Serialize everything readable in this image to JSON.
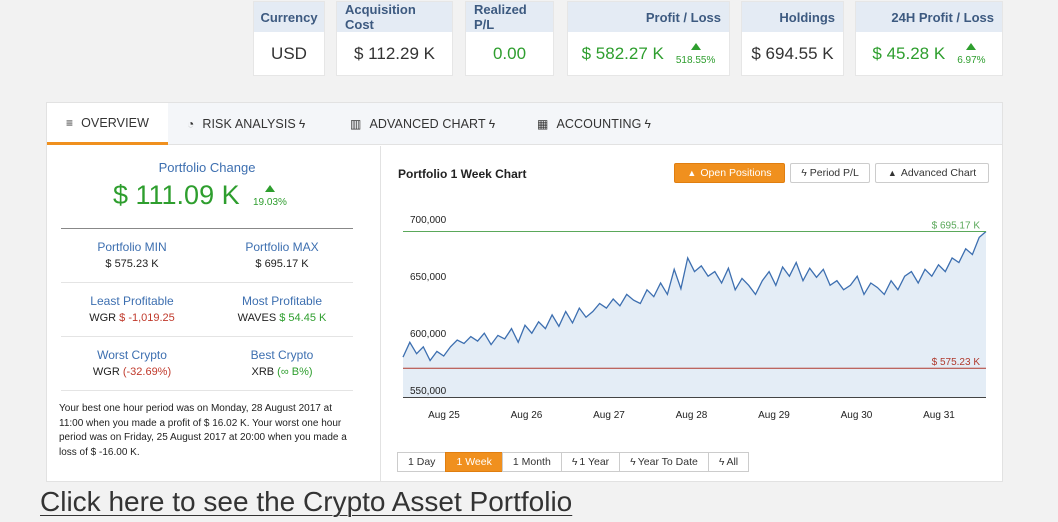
{
  "stats": [
    {
      "header": "Currency",
      "value": "USD",
      "green": false
    },
    {
      "header": "Acquisition Cost",
      "value": "$ 112.29 K",
      "green": false
    },
    {
      "header": "Realized P/L",
      "value": "0.00",
      "green": true
    },
    {
      "header": "Profit / Loss",
      "value": "$ 582.27 K",
      "pct": "518.55%",
      "green": true
    },
    {
      "header": "Holdings",
      "value": "$ 694.55 K",
      "green": false
    },
    {
      "header": "24H Profit / Loss",
      "value": "$ 45.28 K",
      "pct": "6.97%",
      "green": true
    }
  ],
  "tabs": [
    {
      "label": "OVERVIEW",
      "icon": "list-icon",
      "glyph": "≡",
      "active": true,
      "bolt": false
    },
    {
      "label": "RISK ANALYSIS",
      "icon": "pie-chart-icon",
      "glyph": "◔",
      "active": false,
      "bolt": true
    },
    {
      "label": "ADVANCED CHART",
      "icon": "bar-chart-icon",
      "glyph": "▥",
      "active": false,
      "bolt": true
    },
    {
      "label": "ACCOUNTING",
      "icon": "calculator-icon",
      "glyph": "▦",
      "active": false,
      "bolt": true
    }
  ],
  "summary": {
    "change_label": "Portfolio Change",
    "change_value": "$ 111.09 K",
    "change_pct": "19.03%",
    "min_label": "Portfolio MIN",
    "min_value": "$ 575.23 K",
    "max_label": "Portfolio MAX",
    "max_value": "$ 695.17 K",
    "least_label": "Least Profitable",
    "least_coin": "WGR",
    "least_value": "$ -1,019.25",
    "most_label": "Most Profitable",
    "most_coin": "WAVES",
    "most_value": "$ 54.45 K",
    "worst_label": "Worst Crypto",
    "worst_coin": "WGR",
    "worst_value": "(-32.69%)",
    "best_label": "Best Crypto",
    "best_coin": "XRB",
    "best_value": "(∞ B%)",
    "note": "Your best one hour period was on Monday, 28 August 2017 at 11:00 when you made a profit of $ 16.02 K. Your worst one hour period was on Friday, 25 August 2017 at 20:00 when you made a loss of $ -16.00 K."
  },
  "chart": {
    "title": "Portfolio 1 Week Chart",
    "buttons": [
      {
        "label": "Open Positions",
        "icon": "area-chart-icon",
        "glyph": "▲",
        "active": true
      },
      {
        "label": "Period P/L",
        "icon": "bolt-icon",
        "glyph": "ϟ",
        "active": false
      },
      {
        "label": "Advanced Chart",
        "icon": "area-chart-icon",
        "glyph": "▲",
        "active": false
      }
    ],
    "ranges": [
      {
        "label": "1 Day",
        "active": false,
        "bolt": false
      },
      {
        "label": "1 Week",
        "active": true,
        "bolt": false
      },
      {
        "label": "1 Month",
        "active": false,
        "bolt": false
      },
      {
        "label": "1 Year",
        "active": false,
        "bolt": true
      },
      {
        "label": "Year To Date",
        "active": false,
        "bolt": true
      },
      {
        "label": "All",
        "active": false,
        "bolt": true
      }
    ],
    "max_label": "$ 695.17 K",
    "min_label": "$ 575.23 K",
    "colors": {
      "line": "#3d6fb0",
      "fill": "#e4edf6",
      "max": "#5aa85a",
      "min": "#b03a2e",
      "accent": "#f0901e"
    }
  },
  "chart_data": {
    "type": "area",
    "x_labels": [
      "Aug 25",
      "Aug 26",
      "Aug 27",
      "Aug 28",
      "Aug 29",
      "Aug 30",
      "Aug 31"
    ],
    "y_ticks": [
      "550,000",
      "600,000",
      "650,000",
      "700,000"
    ],
    "ylim": [
      550000,
      700000
    ],
    "max_line": 695170,
    "min_line": 575230,
    "values": [
      585000,
      598000,
      588000,
      594000,
      582000,
      590000,
      586000,
      594000,
      600000,
      597000,
      603000,
      599000,
      606000,
      596000,
      604000,
      601000,
      610000,
      598000,
      613000,
      606000,
      616000,
      610000,
      622000,
      612000,
      625000,
      615000,
      628000,
      620000,
      625000,
      632000,
      628000,
      636000,
      630000,
      640000,
      635000,
      632000,
      644000,
      638000,
      650000,
      640000,
      662000,
      645000,
      672000,
      660000,
      665000,
      656000,
      660000,
      650000,
      663000,
      644000,
      654000,
      648000,
      640000,
      652000,
      660000,
      648000,
      664000,
      656000,
      668000,
      652000,
      663000,
      655000,
      662000,
      648000,
      652000,
      644000,
      648000,
      656000,
      640000,
      650000,
      646000,
      640000,
      652000,
      644000,
      656000,
      660000,
      650000,
      662000,
      656000,
      666000,
      660000,
      672000,
      668000,
      680000,
      675000,
      690000,
      695170
    ]
  },
  "footer": {
    "link": "Click here to see the Crypto Asset Portfolio"
  }
}
